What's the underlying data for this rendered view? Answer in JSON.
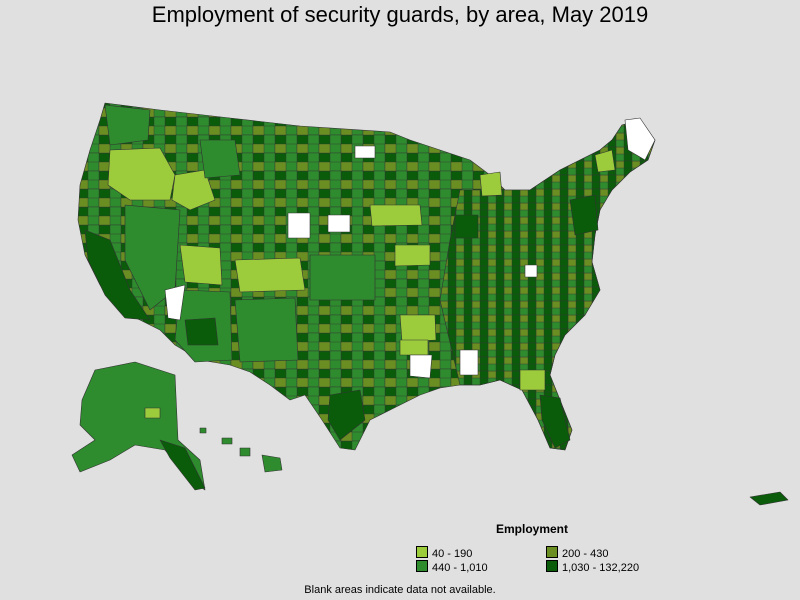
{
  "title": "Employment of security guards, by area, May 2019",
  "legend": {
    "title": "Employment",
    "items": [
      {
        "label": "40 - 190",
        "color": "#9ccc3c"
      },
      {
        "label": "200 - 430",
        "color": "#6b8e23"
      },
      {
        "label": "440 - 1,010",
        "color": "#2e8b2e"
      },
      {
        "label": "1,030 - 132,220",
        "color": "#0a5c0a"
      }
    ]
  },
  "no_data_color": "#ffffff",
  "footnote": "Blank areas indicate data not available."
}
